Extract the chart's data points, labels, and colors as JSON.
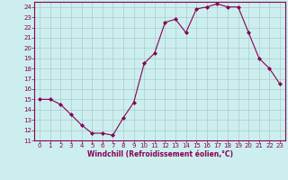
{
  "x": [
    0,
    1,
    2,
    3,
    4,
    5,
    6,
    7,
    8,
    9,
    10,
    11,
    12,
    13,
    14,
    15,
    16,
    17,
    18,
    19,
    20,
    21,
    22,
    23
  ],
  "y": [
    15,
    15,
    14.5,
    13.5,
    12.5,
    11.7,
    11.7,
    11.5,
    13.2,
    14.7,
    18.5,
    19.5,
    22.5,
    22.8,
    21.5,
    23.8,
    24.0,
    24.3,
    24.0,
    24.0,
    21.5,
    19.0,
    18.0,
    16.5
  ],
  "xlabel": "Windchill (Refroidissement éolien,°C)",
  "ylim": [
    11,
    24.5
  ],
  "xlim": [
    -0.5,
    23.5
  ],
  "yticks": [
    11,
    12,
    13,
    14,
    15,
    16,
    17,
    18,
    19,
    20,
    21,
    22,
    23,
    24
  ],
  "xticks": [
    0,
    1,
    2,
    3,
    4,
    5,
    6,
    7,
    8,
    9,
    10,
    11,
    12,
    13,
    14,
    15,
    16,
    17,
    18,
    19,
    20,
    21,
    22,
    23
  ],
  "line_color": "#880055",
  "marker": "D",
  "bg_color": "#cceeee",
  "grid_color": "#aacccc",
  "label_color": "#880055",
  "tick_color": "#880055",
  "spine_color": "#880055",
  "marker_size": 2.0,
  "line_width": 0.8,
  "tick_labelsize": 5.0,
  "xlabel_fontsize": 5.5
}
